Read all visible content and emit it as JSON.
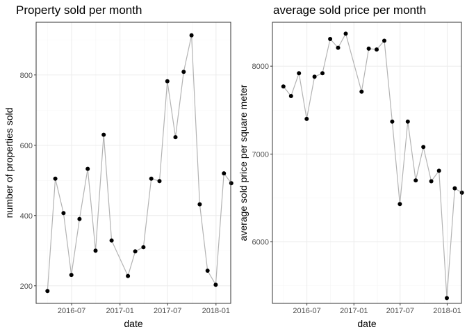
{
  "chart_data": [
    {
      "type": "line",
      "title": "Property sold per month",
      "xlabel": "date",
      "ylabel": "number of properties sold",
      "x_ticks": [
        "2016-07",
        "2017-01",
        "2017-07",
        "2018-01"
      ],
      "y_ticks": [
        200,
        400,
        600,
        800
      ],
      "ylim": [
        150,
        950
      ],
      "xlim": [
        "2016-02-17",
        "2018-02-26"
      ],
      "grid": true,
      "line_color": "#b3b3b3",
      "point_color": "#000000",
      "series": [
        {
          "x": [
            "2016-03-31",
            "2016-04-30",
            "2016-05-31",
            "2016-06-30",
            "2016-07-31",
            "2016-08-31",
            "2016-09-30",
            "2016-10-31",
            "2016-11-30",
            "2017-01-31",
            "2017-02-28",
            "2017-03-31",
            "2017-04-30",
            "2017-05-31",
            "2017-06-30",
            "2017-07-31",
            "2017-08-31",
            "2017-09-30",
            "2017-10-31",
            "2017-11-30",
            "2017-12-31",
            "2018-01-31",
            "2018-02-28"
          ],
          "values": [
            185,
            505,
            407,
            231,
            390,
            533,
            300,
            630,
            329,
            228,
            298,
            310,
            505,
            498,
            782,
            623,
            809,
            913,
            432,
            243,
            203,
            520,
            492
          ]
        }
      ]
    },
    {
      "type": "line",
      "title": "average sold price per month",
      "xlabel": "date",
      "ylabel": "average sold price per square meter",
      "x_ticks": [
        "2016-07",
        "2017-01",
        "2017-07",
        "2018-01"
      ],
      "y_ticks": [
        6000,
        7000,
        8000
      ],
      "ylim": [
        5300,
        8500
      ],
      "xlim": [
        "2016-02-17",
        "2018-02-26"
      ],
      "grid": true,
      "line_color": "#b3b3b3",
      "point_color": "#000000",
      "series": [
        {
          "x": [
            "2016-03-31",
            "2016-04-30",
            "2016-05-31",
            "2016-06-30",
            "2016-07-31",
            "2016-08-31",
            "2016-09-30",
            "2016-10-31",
            "2016-11-30",
            "2017-01-31",
            "2017-02-28",
            "2017-03-31",
            "2017-04-30",
            "2017-05-31",
            "2017-06-30",
            "2017-07-31",
            "2017-08-31",
            "2017-09-30",
            "2017-10-31",
            "2017-11-30",
            "2017-12-31",
            "2018-01-31",
            "2018-02-28"
          ],
          "values": [
            7770,
            7660,
            7920,
            7400,
            7880,
            7920,
            8310,
            8210,
            8370,
            7710,
            8200,
            8190,
            8290,
            7370,
            6430,
            7370,
            6700,
            7080,
            6690,
            6810,
            5360,
            6610,
            6560
          ]
        }
      ]
    }
  ]
}
